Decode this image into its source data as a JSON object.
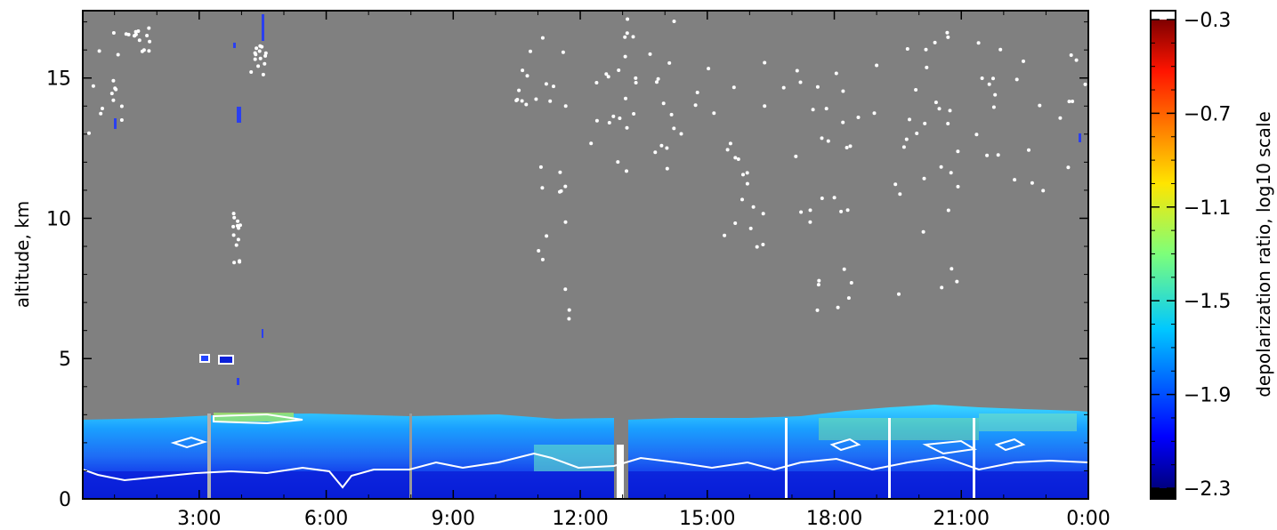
{
  "chart_data": {
    "type": "heatmap",
    "title": "",
    "xlabel": "",
    "ylabel": "altitude, km",
    "x_tick_labels": [
      "3:00",
      "6:00",
      "9:00",
      "12:00",
      "15:00",
      "18:00",
      "21:00",
      "0:00"
    ],
    "x_ticks_hours": [
      3,
      6,
      9,
      12,
      15,
      18,
      21,
      24
    ],
    "xlim_hours": [
      0.25,
      24
    ],
    "y_tick_labels": [
      "0",
      "5",
      "10",
      "15"
    ],
    "y_ticks": [
      0,
      5,
      10,
      15
    ],
    "ylim": [
      0,
      17.4
    ],
    "grid": false,
    "colorbar": {
      "label": "depolarization ratio, log10 scale",
      "tick_labels": [
        "−0.3",
        "−0.7",
        "−1.1",
        "−1.5",
        "−1.9",
        "−2.3"
      ],
      "ticks": [
        -0.3,
        -0.7,
        -1.1,
        -1.5,
        -1.9,
        -2.3
      ],
      "range": [
        -2.3,
        -0.3
      ],
      "colormap": "jet",
      "over_color": "#ffffff",
      "under_color": "#000000"
    },
    "no_data_color": "#808080",
    "layer_top_km": 2.8
  }
}
